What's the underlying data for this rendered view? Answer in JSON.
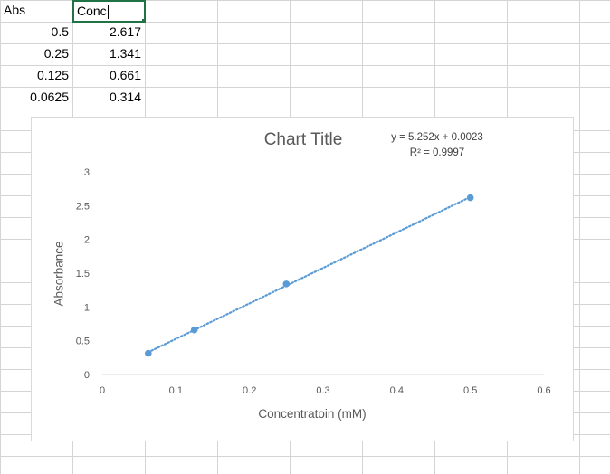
{
  "sheet": {
    "headers": [
      "Abs",
      "Conc"
    ],
    "rows": [
      [
        "0.5",
        "2.617"
      ],
      [
        "0.25",
        "1.341"
      ],
      [
        "0.125",
        "0.661"
      ],
      [
        "0.0625",
        "0.314"
      ]
    ]
  },
  "chart_data": {
    "type": "scatter",
    "title": "Chart Title",
    "xlabel": "Concentratoin (mM)",
    "ylabel": "Absorbance",
    "xlim": [
      0,
      0.6
    ],
    "ylim": [
      0,
      3
    ],
    "x_ticks": [
      "0",
      "0.1",
      "0.2",
      "0.3",
      "0.4",
      "0.5",
      "0.6"
    ],
    "y_ticks": [
      "0",
      "0.5",
      "1",
      "1.5",
      "2",
      "2.5",
      "3"
    ],
    "series": [
      {
        "x": [
          0.0625,
          0.125,
          0.25,
          0.5
        ],
        "y": [
          0.314,
          0.661,
          1.341,
          2.617
        ],
        "color": "#5b9bd5"
      }
    ],
    "trendline": {
      "type": "linear",
      "slope": 5.252,
      "intercept": 0.0023,
      "equation_label": "y = 5.252x + 0.0023",
      "r2_label": "R² = 0.9997",
      "style": "dotted",
      "color": "#5b9bd5"
    },
    "grid": false
  }
}
